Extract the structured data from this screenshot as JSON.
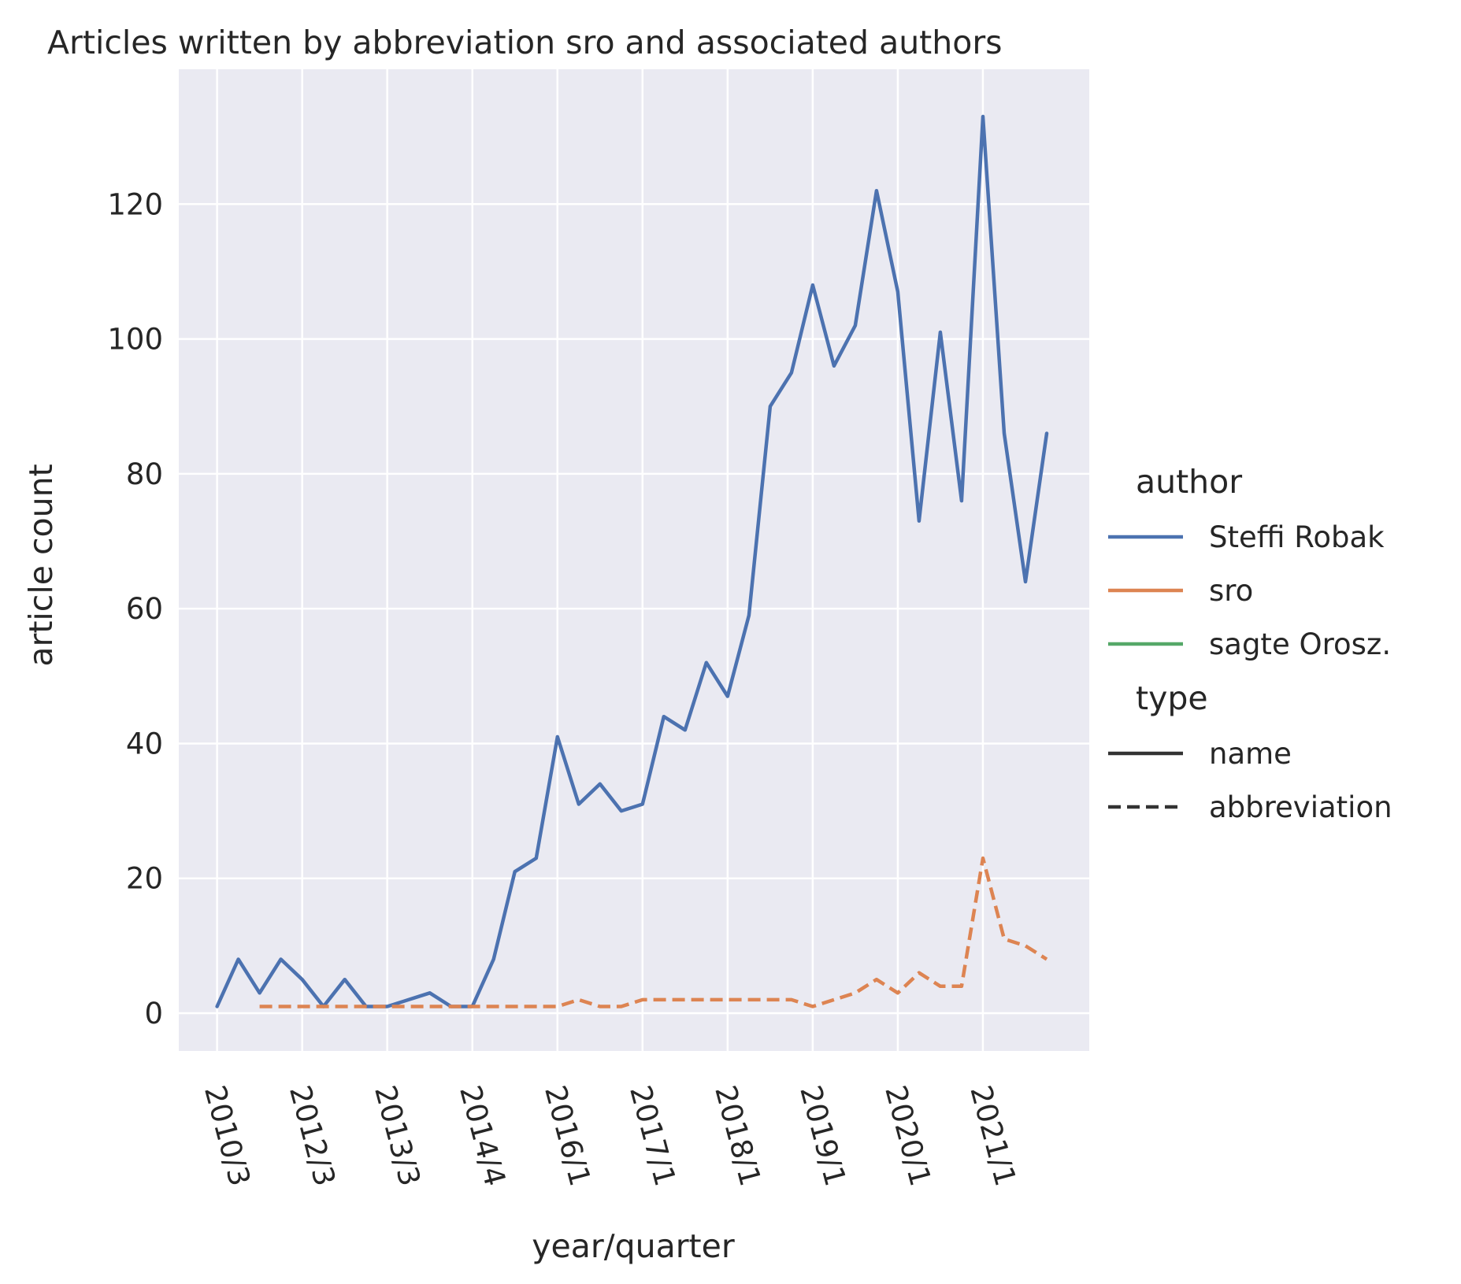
{
  "chart_data": {
    "type": "line",
    "title": "Articles written by abbreviation sro and associated authors",
    "xlabel": "year/quarter",
    "ylabel": "article count",
    "ylim": [
      -5.6,
      140
    ],
    "yticks": [
      0,
      20,
      40,
      60,
      80,
      100,
      120
    ],
    "xticks": [
      {
        "x": 0,
        "label": "2010/3"
      },
      {
        "x": 4,
        "label": "2012/3"
      },
      {
        "x": 8,
        "label": "2013/3"
      },
      {
        "x": 12,
        "label": "2014/4"
      },
      {
        "x": 16,
        "label": "2016/1"
      },
      {
        "x": 20,
        "label": "2017/1"
      },
      {
        "x": 24,
        "label": "2018/1"
      },
      {
        "x": 28,
        "label": "2019/1"
      },
      {
        "x": 32,
        "label": "2020/1"
      },
      {
        "x": 36,
        "label": "2021/1"
      }
    ],
    "xlim": [
      -1.8,
      41
    ],
    "grid": true,
    "legend_position": "right",
    "legend": {
      "hue_title": "author",
      "hue_entries": [
        {
          "label": "Steffi Robak",
          "color": "#4c72b0"
        },
        {
          "label": "sro",
          "color": "#dd8452"
        },
        {
          "label": "sagte Orosz.",
          "color": "#55a868"
        }
      ],
      "style_title": "type",
      "style_entries": [
        {
          "label": "name",
          "dash": "solid"
        },
        {
          "label": "abbreviation",
          "dash": "dashed"
        }
      ]
    },
    "series": [
      {
        "name": "Steffi Robak",
        "type": "name",
        "color": "#4c72b0",
        "dash": "solid",
        "x": [
          0,
          1,
          2,
          3,
          4,
          5,
          6,
          7,
          8,
          9,
          10,
          11,
          12,
          13,
          14,
          15,
          16,
          17,
          18,
          19,
          20,
          21,
          22,
          23,
          24,
          25,
          26,
          27,
          28,
          29,
          30,
          31,
          32,
          33,
          34,
          35,
          36,
          37,
          38,
          39
        ],
        "y": [
          1,
          8,
          3,
          8,
          5,
          1,
          5,
          1,
          1,
          2,
          3,
          1,
          1,
          8,
          21,
          23,
          41,
          31,
          34,
          30,
          31,
          44,
          42,
          52,
          47,
          59,
          90,
          95,
          108,
          96,
          102,
          122,
          107,
          73,
          101,
          76,
          133,
          86,
          64,
          86
        ]
      },
      {
        "name": "sro",
        "type": "abbreviation",
        "color": "#dd8452",
        "dash": "dashed",
        "x": [
          2,
          3,
          4,
          5,
          6,
          7,
          8,
          9,
          10,
          11,
          12,
          13,
          14,
          15,
          16,
          17,
          18,
          19,
          20,
          21,
          22,
          23,
          24,
          25,
          26,
          27,
          28,
          29,
          30,
          31,
          32,
          33,
          34,
          35,
          36,
          37,
          38,
          39
        ],
        "y": [
          1,
          1,
          1,
          1,
          1,
          1,
          1,
          1,
          1,
          1,
          1,
          1,
          1,
          1,
          1,
          2,
          1,
          1,
          2,
          2,
          2,
          2,
          2,
          2,
          2,
          2,
          1,
          2,
          3,
          5,
          3,
          6,
          4,
          4,
          23,
          11,
          10,
          8
        ]
      }
    ]
  }
}
